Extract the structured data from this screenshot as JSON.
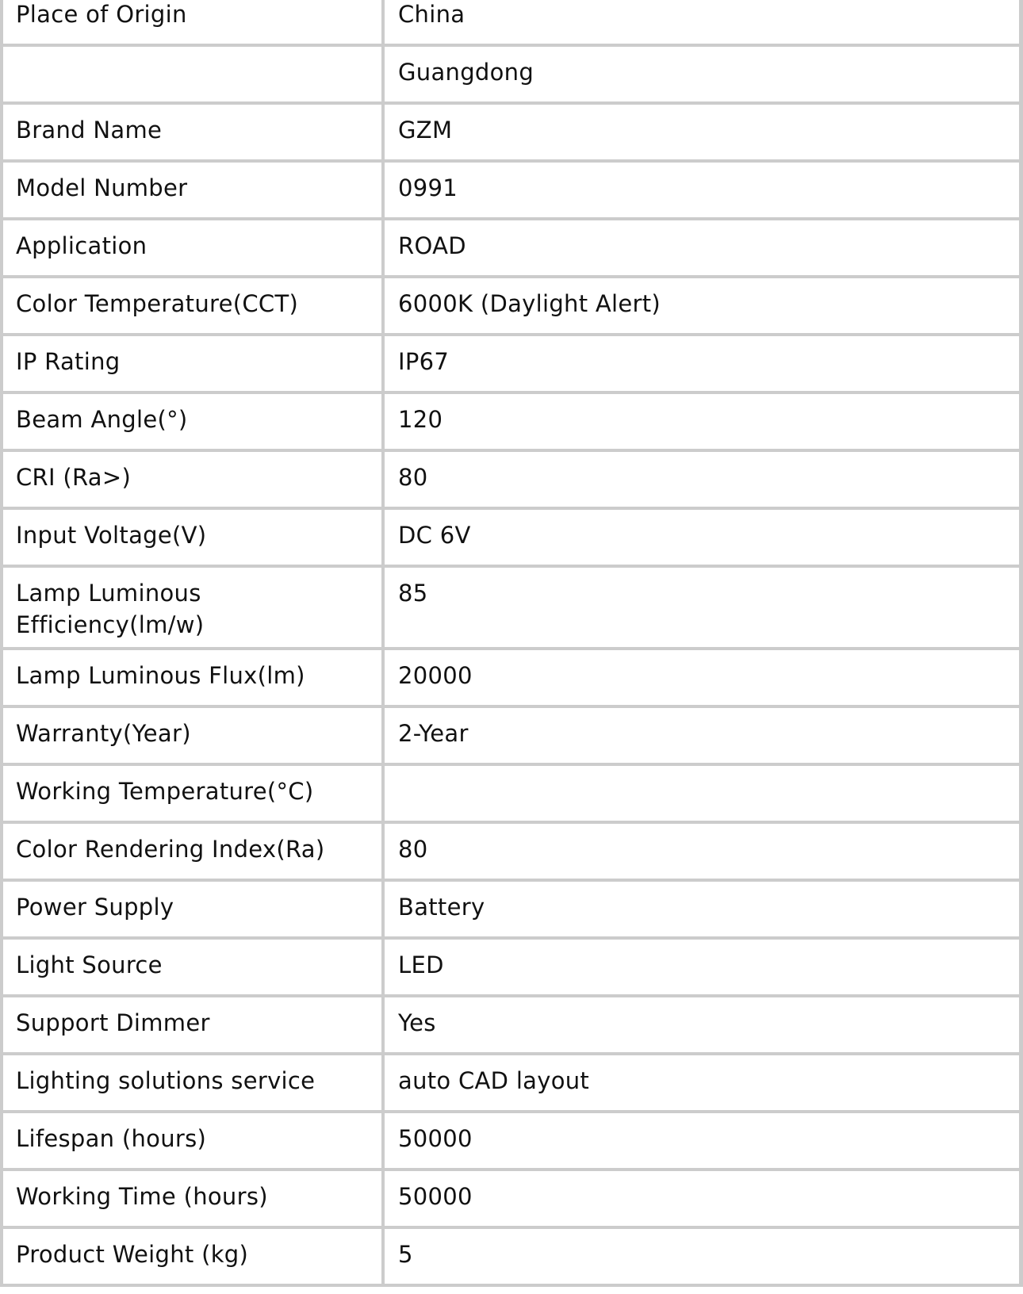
{
  "rows": [
    {
      "key": "Place of Origin",
      "value": "China"
    },
    {
      "key": "",
      "value": "Guangdong"
    },
    {
      "key": "Brand Name",
      "value": "GZM"
    },
    {
      "key": "Model Number",
      "value": "0991"
    },
    {
      "key": "Application",
      "value": "ROAD"
    },
    {
      "key": "Color Temperature(CCT)",
      "value": "6000K (Daylight Alert)"
    },
    {
      "key": "IP Rating",
      "value": "IP67"
    },
    {
      "key": "Beam Angle(°)",
      "value": "120"
    },
    {
      "key": "CRI (Ra>)",
      "value": "80"
    },
    {
      "key": "Input Voltage(V)",
      "value": "DC 6V"
    },
    {
      "key": "Lamp Luminous Efficiency(lm/w)",
      "value": "85"
    },
    {
      "key": "Lamp Luminous Flux(lm)",
      "value": "20000"
    },
    {
      "key": "Warranty(Year)",
      "value": "2-Year"
    },
    {
      "key": "Working Temperature(°C)",
      "value": ""
    },
    {
      "key": "Color Rendering Index(Ra)",
      "value": "80"
    },
    {
      "key": "Power Supply",
      "value": "Battery"
    },
    {
      "key": "Light Source",
      "value": "LED"
    },
    {
      "key": "Support Dimmer",
      "value": "Yes"
    },
    {
      "key": "Lighting solutions service",
      "value": "auto CAD layout"
    },
    {
      "key": "Lifespan (hours)",
      "value": "50000"
    },
    {
      "key": "Working Time (hours)",
      "value": "50000"
    },
    {
      "key": "Product Weight  (kg)",
      "value": "5"
    }
  ]
}
